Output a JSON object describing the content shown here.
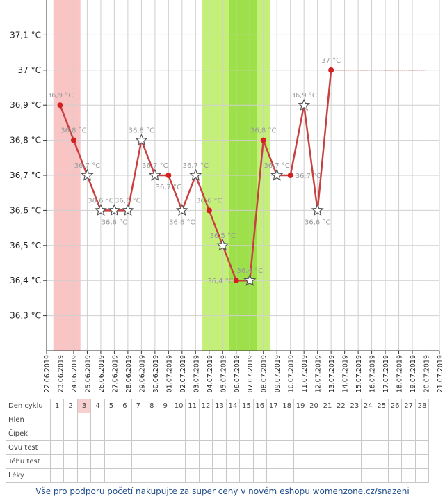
{
  "chart_data": {
    "type": "line",
    "y_ticks": [
      "36,3 °C",
      "36,4 °C",
      "36,5 °C",
      "36,6 °C",
      "36,7 °C",
      "36,8 °C",
      "36,9 °C",
      "37 °C",
      "37,1 °C"
    ],
    "ylim": [
      36.2,
      37.2
    ],
    "x": [
      "22.06.2019",
      "23.06.2019",
      "24.06.2019",
      "25.06.2019",
      "26.06.2019",
      "27.06.2019",
      "28.06.2019",
      "29.06.2019",
      "30.06.2019",
      "01.07.2019",
      "02.07.2019",
      "03.07.2019",
      "04.07.2019",
      "05.07.2019",
      "06.07.2019",
      "07.07.2019",
      "08.07.2019",
      "09.07.2019",
      "10.07.2019",
      "11.07.2019",
      "12.07.2019",
      "13.07.2019",
      "14.07.2019",
      "15.07.2019",
      "16.07.2019",
      "17.07.2019",
      "18.07.2019",
      "19.07.2019",
      "20.07.2019",
      "21.07.2019"
    ],
    "points": [
      {
        "x": "23.06.2019",
        "y": 36.9,
        "label": "36,9 °C",
        "marker": "dot"
      },
      {
        "x": "24.06.2019",
        "y": 36.8,
        "label": "36,8 °C",
        "marker": "dot"
      },
      {
        "x": "25.06.2019",
        "y": 36.7,
        "label": "36,7 °C",
        "marker": "star"
      },
      {
        "x": "26.06.2019",
        "y": 36.6,
        "label": "36,6 °C",
        "marker": "star"
      },
      {
        "x": "27.06.2019",
        "y": 36.6,
        "label": "36,6 °C",
        "marker": "star"
      },
      {
        "x": "28.06.2019",
        "y": 36.6,
        "label": "36,6 °C",
        "marker": "star"
      },
      {
        "x": "29.06.2019",
        "y": 36.8,
        "label": "36,8 °C",
        "marker": "star"
      },
      {
        "x": "30.06.2019",
        "y": 36.7,
        "label": "36,7 °C",
        "marker": "star"
      },
      {
        "x": "01.07.2019",
        "y": 36.7,
        "label": "36,7 °C",
        "marker": "dot"
      },
      {
        "x": "02.07.2019",
        "y": 36.6,
        "label": "36,6 °C",
        "marker": "star"
      },
      {
        "x": "03.07.2019",
        "y": 36.7,
        "label": "36,7 °C",
        "marker": "star"
      },
      {
        "x": "04.07.2019",
        "y": 36.6,
        "label": "36,6 °C",
        "marker": "dot"
      },
      {
        "x": "05.07.2019",
        "y": 36.5,
        "label": "36,5 °C",
        "marker": "star"
      },
      {
        "x": "06.07.2019",
        "y": 36.4,
        "label": "36,4 °C",
        "marker": "dot"
      },
      {
        "x": "07.07.2019",
        "y": 36.4,
        "label": "36,4 °C",
        "marker": "star"
      },
      {
        "x": "08.07.2019",
        "y": 36.8,
        "label": "36,8 °C",
        "marker": "dot"
      },
      {
        "x": "09.07.2019",
        "y": 36.7,
        "label": "36,7 °C",
        "marker": "star"
      },
      {
        "x": "10.07.2019",
        "y": 36.7,
        "label": "36,7 °C",
        "marker": "dot"
      },
      {
        "x": "11.07.2019",
        "y": 36.9,
        "label": "36,9 °C",
        "marker": "star"
      },
      {
        "x": "12.07.2019",
        "y": 36.6,
        "label": "36,6 °C",
        "marker": "star"
      },
      {
        "x": "13.07.2019",
        "y": 37.0,
        "label": "37 °C",
        "marker": "dot"
      }
    ],
    "bands": [
      {
        "from": "23.06.2019",
        "to": "24.06.2019",
        "color": "#f9c4c4"
      },
      {
        "from": "04.07.2019",
        "to": "08.07.2019",
        "color": "#c4f07a"
      },
      {
        "from": "06.07.2019",
        "to": "07.07.2019",
        "color": "#9ee04a"
      }
    ],
    "hold_line": {
      "from": "13.07.2019",
      "to": "20.07.2019",
      "y": 37.0
    },
    "line_color": "#c84040",
    "dot_color": "#d42020",
    "grid": true
  },
  "table": {
    "rows": [
      "Den cyklu",
      "Hlen",
      "Čípek",
      "Ovu test",
      "Těhu test",
      "Léky"
    ],
    "cycle_days": [
      "1",
      "2",
      "3",
      "4",
      "5",
      "6",
      "7",
      "8",
      "9",
      "10",
      "11",
      "12",
      "13",
      "14",
      "15",
      "16",
      "17",
      "18",
      "19",
      "20",
      "21",
      "22",
      "23",
      "24",
      "25",
      "26",
      "27",
      "28"
    ],
    "highlight_day": "3"
  },
  "footer": "Vše pro podporu početí nakupujte za super ceny v novém eshopu womenzone.cz/snazeni"
}
